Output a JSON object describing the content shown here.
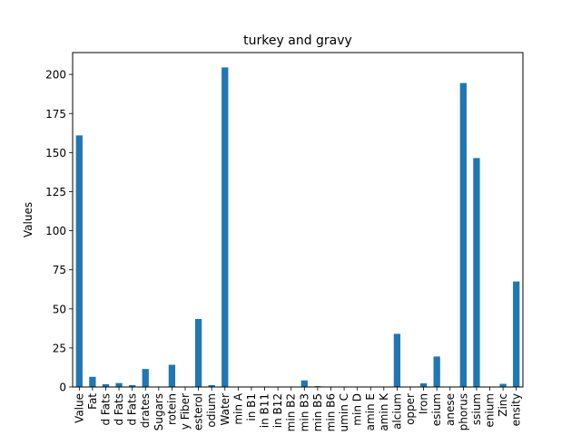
{
  "chart_data": {
    "type": "bar",
    "title": "turkey and gravy",
    "xlabel": "",
    "ylabel": "Values",
    "ylim": [
      0,
      214
    ],
    "yticks": [
      0,
      25,
      50,
      75,
      100,
      125,
      150,
      175,
      200
    ],
    "grid": false,
    "legend": "none",
    "bar_color": "#1f77b4",
    "categories": [
      "Value",
      "Fat",
      "d Fats",
      "d Fats",
      "d Fats",
      "drates",
      "Sugars",
      "rotein",
      "y Fiber",
      "esterol",
      "odium",
      "Water",
      "min A",
      "in B1",
      "in B11",
      "in B12",
      "min B2",
      "min B3",
      "min B5",
      "min B6",
      "umin C",
      "min D",
      "amin E",
      "amin K",
      "alcium",
      "opper",
      "Iron",
      "esium",
      "anese",
      "phorus",
      "ssium",
      "enium",
      "Zinc",
      "ensity"
    ],
    "values": [
      161,
      6.5,
      1.8,
      2.5,
      1.2,
      11.5,
      0,
      14.2,
      0,
      43.5,
      1.2,
      204.5,
      0,
      0,
      0,
      0,
      0,
      4.2,
      0.5,
      0,
      0,
      0,
      0,
      0,
      34,
      0,
      2.3,
      19.5,
      0,
      194.5,
      146.5,
      0,
      2,
      67.5
    ]
  }
}
